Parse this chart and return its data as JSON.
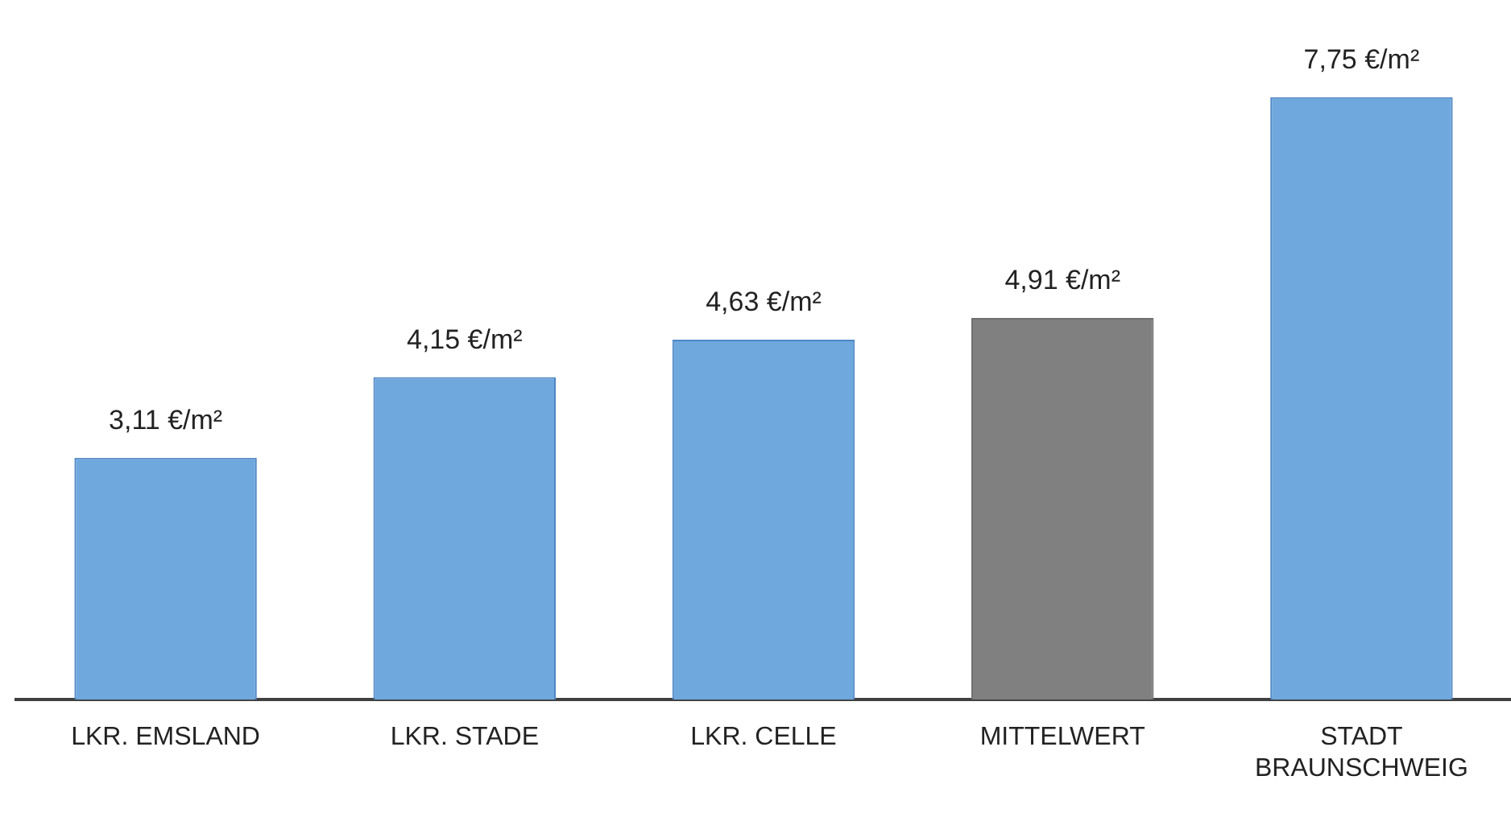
{
  "chart_data": {
    "type": "bar",
    "categories": [
      "LKR. EMSLAND",
      "LKR. STADE",
      "LKR. CELLE",
      "MITTELWERT",
      "STADT BRAUNSCHWEIG"
    ],
    "values": [
      3.11,
      4.15,
      4.63,
      4.91,
      7.75
    ],
    "colors": [
      "#6fa8dc",
      "#6fa8dc",
      "#6fa8dc",
      "#808080",
      "#6fa8dc"
    ],
    "value_labels": [
      "3,11 €/m²",
      "4,15 €/m²",
      "4,63 €/m²",
      "4,91 €/m²",
      "7,75 €/m²"
    ],
    "grid": false,
    "legend": false
  }
}
